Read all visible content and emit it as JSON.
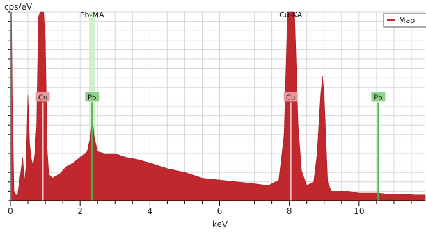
{
  "chart_data": {
    "type": "area",
    "ylabel": "cps/eV",
    "xlabel": "keV",
    "xlim": [
      0,
      11.9
    ],
    "ylim": [
      0,
      1
    ],
    "x_ticks": [
      "0",
      "2",
      "4",
      "6",
      "8",
      "10"
    ],
    "x_tick_values": [
      0,
      2,
      4,
      6,
      8,
      10
    ],
    "grid": true,
    "legend": {
      "placement": "top-right",
      "entries": [
        "Map"
      ]
    },
    "colors": {
      "spectrum": "#c0282d",
      "pb_marker": "#53b34f",
      "cu_badge": "#e8999c",
      "pb_badge": "#8fd18b"
    },
    "series": [
      {
        "name": "Map",
        "x": [
          0.03,
          0.05,
          0.1,
          0.2,
          0.3,
          0.35,
          0.4,
          0.45,
          0.5,
          0.55,
          0.6,
          0.65,
          0.7,
          0.75,
          0.8,
          0.85,
          0.9,
          0.95,
          1.0,
          1.05,
          1.1,
          1.2,
          1.4,
          1.6,
          1.8,
          2.0,
          2.2,
          2.3,
          2.35,
          2.4,
          2.5,
          2.7,
          3.0,
          3.3,
          3.6,
          4.0,
          4.5,
          5.0,
          5.5,
          6.0,
          6.5,
          7.0,
          7.4,
          7.7,
          7.85,
          7.95,
          8.05,
          8.15,
          8.25,
          8.35,
          8.5,
          8.7,
          8.8,
          8.9,
          8.95,
          9.0,
          9.1,
          9.2,
          9.4,
          9.7,
          10.0,
          10.3,
          10.55,
          10.8,
          11.2,
          11.6,
          11.9
        ],
        "values": [
          1.0,
          0.55,
          0.05,
          0.02,
          0.16,
          0.23,
          0.1,
          0.18,
          0.56,
          0.3,
          0.22,
          0.18,
          0.25,
          0.4,
          0.97,
          1.0,
          1.0,
          1.0,
          0.85,
          0.28,
          0.14,
          0.12,
          0.14,
          0.18,
          0.2,
          0.23,
          0.26,
          0.34,
          0.44,
          0.34,
          0.26,
          0.25,
          0.25,
          0.23,
          0.22,
          0.2,
          0.17,
          0.15,
          0.12,
          0.11,
          0.1,
          0.09,
          0.08,
          0.11,
          0.35,
          1.0,
          1.0,
          1.0,
          0.4,
          0.16,
          0.08,
          0.1,
          0.25,
          0.56,
          0.66,
          0.55,
          0.1,
          0.05,
          0.05,
          0.05,
          0.04,
          0.04,
          0.04,
          0.035,
          0.035,
          0.03,
          0.03
        ]
      }
    ],
    "element_markers": [
      {
        "label": "Cu",
        "x": 0.93,
        "badge_y": 0.55,
        "kind": "Cu"
      },
      {
        "label": "Pb",
        "x": 2.34,
        "badge_y": 0.55,
        "kind": "Pb"
      },
      {
        "label": "Cu",
        "x": 8.04,
        "badge_y": 0.55,
        "kind": "Cu"
      },
      {
        "label": "Pb",
        "x": 10.55,
        "badge_y": 0.55,
        "kind": "Pb"
      }
    ],
    "line_labels": [
      {
        "label": "Pb-MA",
        "x": 2.34
      },
      {
        "label": "Cu-KA",
        "x": 8.04
      }
    ]
  }
}
